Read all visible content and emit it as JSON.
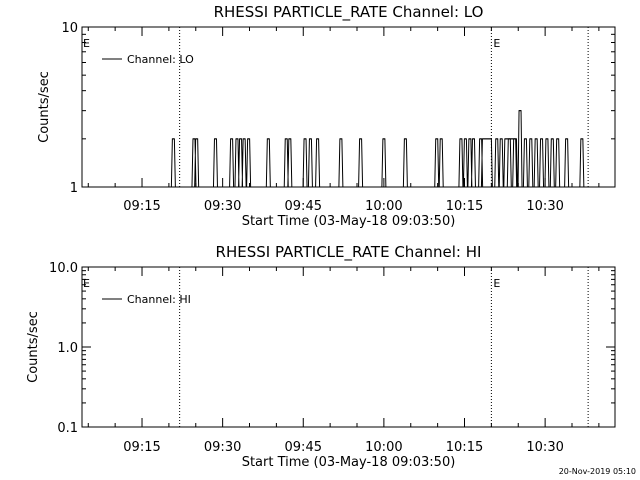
{
  "footer": "20-Nov-2019 05:10",
  "chart_data": [
    {
      "type": "line",
      "title": "RHESSI PARTICLE_RATE Channel: LO",
      "xlabel": "Start Time (03-May-18 09:03:50)",
      "ylabel": "Counts/sec",
      "yscale": "log",
      "ylim": [
        1,
        10
      ],
      "yticks": [
        "1",
        "10"
      ],
      "xlim": [
        "09:03:50",
        "10:43:00"
      ],
      "xticks": [
        "09:15",
        "09:30",
        "09:45",
        "10:00",
        "10:15",
        "10:30"
      ],
      "legend": {
        "entries": [
          "Channel: LO"
        ],
        "position": "top-left"
      },
      "event_lines": [
        {
          "time": "09:22:00",
          "label": ""
        },
        {
          "time": "10:20:00",
          "label": "E"
        },
        {
          "time": "10:38:00",
          "label": ""
        }
      ],
      "corner_label": "E",
      "series": [
        {
          "name": "Channel: LO",
          "baseline": 1,
          "spikes": [
            {
              "time": "09:20:50",
              "y": 2
            },
            {
              "time": "09:24:40",
              "y": 2
            },
            {
              "time": "09:25:10",
              "y": 2
            },
            {
              "time": "09:28:40",
              "y": 2
            },
            {
              "time": "09:31:40",
              "y": 2
            },
            {
              "time": "09:32:40",
              "y": 2
            },
            {
              "time": "09:33:20",
              "y": 2
            },
            {
              "time": "09:34:00",
              "y": 2
            },
            {
              "time": "09:34:50",
              "y": 2
            },
            {
              "time": "09:38:30",
              "y": 2
            },
            {
              "time": "09:41:50",
              "y": 2
            },
            {
              "time": "09:42:30",
              "y": 2
            },
            {
              "time": "09:45:20",
              "y": 2
            },
            {
              "time": "09:46:20",
              "y": 2
            },
            {
              "time": "09:47:40",
              "y": 2
            },
            {
              "time": "09:52:00",
              "y": 2
            },
            {
              "time": "09:55:40",
              "y": 2
            },
            {
              "time": "10:00:00",
              "y": 2
            },
            {
              "time": "10:04:00",
              "y": 2
            },
            {
              "time": "10:09:50",
              "y": 2
            },
            {
              "time": "10:10:40",
              "y": 2
            },
            {
              "time": "10:14:20",
              "y": 2
            },
            {
              "time": "10:15:10",
              "y": 2
            },
            {
              "time": "10:16:00",
              "y": 2
            },
            {
              "time": "10:16:40",
              "y": 2
            },
            {
              "time": "10:18:00",
              "y": 2
            },
            {
              "time": "10:21:00",
              "y": 2
            },
            {
              "time": "10:21:50",
              "y": 2
            },
            {
              "time": "10:23:20",
              "y": 2
            },
            {
              "time": "10:24:20",
              "y": 2
            },
            {
              "time": "10:25:20",
              "y": 3
            },
            {
              "time": "10:26:20",
              "y": 2
            },
            {
              "time": "10:27:20",
              "y": 2
            },
            {
              "time": "10:28:20",
              "y": 2
            },
            {
              "time": "10:29:20",
              "y": 2
            },
            {
              "time": "10:30:20",
              "y": 2
            },
            {
              "time": "10:31:20",
              "y": 2
            },
            {
              "time": "10:32:20",
              "y": 2
            },
            {
              "time": "10:34:00",
              "y": 2
            },
            {
              "time": "10:36:50",
              "y": 2
            }
          ],
          "plateaus": [
            {
              "start": "10:18:20",
              "end": "10:20:00",
              "y": 2
            },
            {
              "start": "10:22:30",
              "end": "10:24:40",
              "y": 2
            }
          ]
        }
      ]
    },
    {
      "type": "line",
      "title": "RHESSI PARTICLE_RATE Channel: HI",
      "xlabel": "Start Time (03-May-18 09:03:50)",
      "ylabel": "Counts/sec",
      "yscale": "log",
      "ylim": [
        0.1,
        10
      ],
      "yticks": [
        "0.1",
        "1.0",
        "10.0"
      ],
      "xlim": [
        "09:03:50",
        "10:43:00"
      ],
      "xticks": [
        "09:15",
        "09:30",
        "09:45",
        "10:00",
        "10:15",
        "10:30"
      ],
      "legend": {
        "entries": [
          "Channel: HI"
        ],
        "position": "top-left"
      },
      "event_lines": [
        {
          "time": "09:22:00",
          "label": ""
        },
        {
          "time": "10:20:00",
          "label": "E"
        },
        {
          "time": "10:38:00",
          "label": ""
        }
      ],
      "corner_label": "E",
      "series": [
        {
          "name": "Channel: HI",
          "spikes": [],
          "plateaus": []
        }
      ]
    }
  ]
}
